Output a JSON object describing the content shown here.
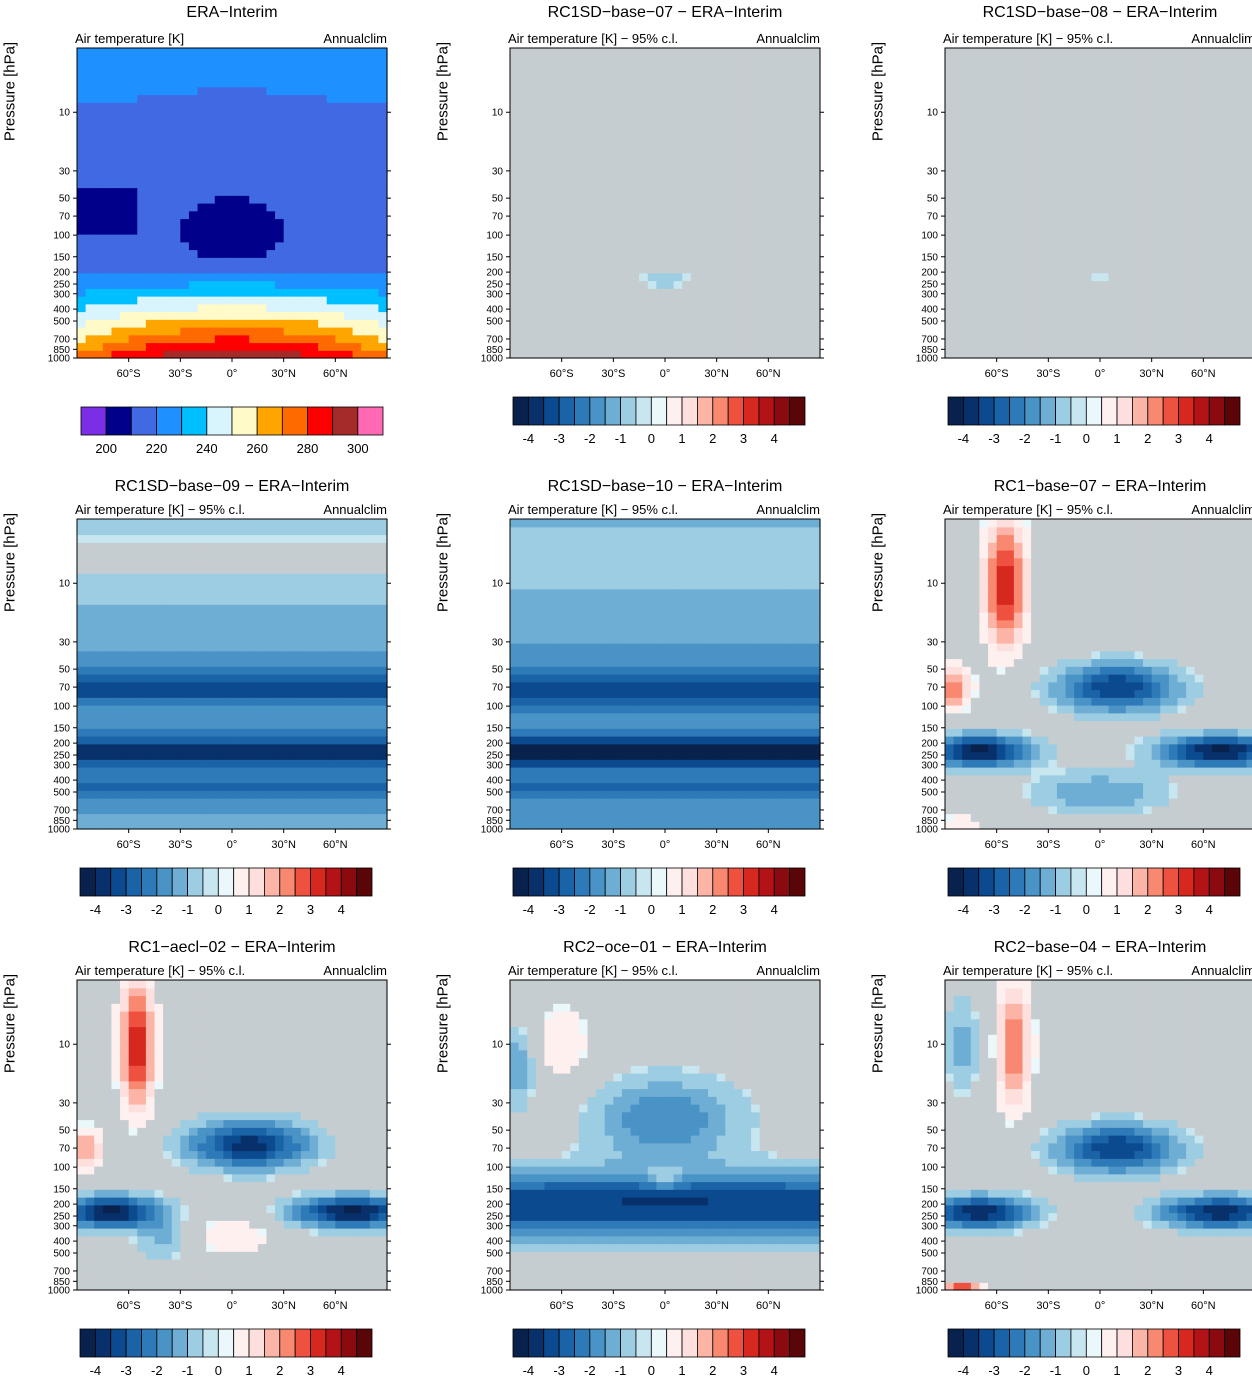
{
  "chart_data": {
    "type": "heatmap",
    "description_grid": "3x3 panels of zonal-mean annual climatology of air temperature",
    "shared": {
      "subtitle_right": "Annualclim",
      "ylabel": "Pressure [hPa]",
      "y_ticks": [
        10,
        30,
        50,
        70,
        100,
        150,
        200,
        250,
        300,
        400,
        500,
        700,
        850,
        1000
      ],
      "x_ticks": [
        "60°S",
        "30°S",
        "0°",
        "30°N",
        "60°N"
      ],
      "x_tick_values": [
        -60,
        -30,
        0,
        30,
        60
      ],
      "x_range": [
        -90,
        90
      ],
      "y_range_hpa": [
        1000,
        3
      ],
      "y_scale": "log"
    },
    "panels": [
      {
        "id": "era-interim",
        "title": "ERA−Interim",
        "subtitle_left": "Air temperature [K]",
        "kind": "absolute",
        "colorbar_labels": [
          "200",
          "220",
          "240",
          "260",
          "280",
          "300"
        ],
        "colorbar_colors": [
          "#7a2ee6",
          "#00008b",
          "#4169e1",
          "#1e90ff",
          "#00bfff",
          "#d8f4fc",
          "#fffac8",
          "#ffa500",
          "#ff6a00",
          "#ff0000",
          "#a52a2a",
          "#ff69b4"
        ],
        "colorbar_levels": [
          195,
          200,
          210,
          220,
          230,
          240,
          250,
          260,
          270,
          280,
          290,
          300,
          310
        ]
      },
      {
        "id": "rc1sd-base-07",
        "title": "RC1SD−base−07 − ERA−Interim",
        "subtitle_left": "Air temperature [K] − 95% c.l.",
        "kind": "difference",
        "pattern": 0
      },
      {
        "id": "rc1sd-base-08",
        "title": "RC1SD−base−08 − ERA−Interim",
        "subtitle_left": "Air temperature [K] − 95% c.l.",
        "kind": "difference",
        "pattern": 1
      },
      {
        "id": "rc1sd-base-09",
        "title": "RC1SD−base−09 − ERA−Interim",
        "subtitle_left": "Air temperature [K] − 95% c.l.",
        "kind": "difference",
        "pattern": 2
      },
      {
        "id": "rc1sd-base-10",
        "title": "RC1SD−base−10 − ERA−Interim",
        "subtitle_left": "Air temperature [K] − 95% c.l.",
        "kind": "difference",
        "pattern": 3
      },
      {
        "id": "rc1-base-07",
        "title": "RC1−base−07 − ERA−Interim",
        "subtitle_left": "Air temperature [K] − 95% c.l.",
        "kind": "difference",
        "pattern": 4
      },
      {
        "id": "rc1-aecl-02",
        "title": "RC1−aecl−02 − ERA−Interim",
        "subtitle_left": "Air temperature [K] − 95% c.l.",
        "kind": "difference",
        "pattern": 5
      },
      {
        "id": "rc2-oce-01",
        "title": "RC2−oce−01 − ERA−Interim",
        "subtitle_left": "Air temperature [K] − 95% c.l.",
        "kind": "difference",
        "pattern": 6
      },
      {
        "id": "rc2-base-04",
        "title": "RC2−base−04 − ERA−Interim",
        "subtitle_left": "Air temperature [K] − 95% c.l.",
        "kind": "difference",
        "pattern": 7
      }
    ],
    "difference_colorbar": {
      "labels": [
        "-4",
        "-3",
        "-2",
        "-1",
        "0",
        "1",
        "2",
        "3",
        "4"
      ],
      "label_values": [
        -4,
        -3,
        -2,
        -1,
        0,
        1,
        2,
        3,
        4
      ],
      "levels": [
        -4.5,
        -4,
        -3.5,
        -3,
        -2.5,
        -2,
        -1.5,
        -1,
        -0.5,
        0,
        0.5,
        1,
        1.5,
        2,
        2.5,
        3,
        3.5,
        4,
        4.5
      ],
      "colors": [
        "#08224d",
        "#08306b",
        "#0b4a8f",
        "#1b63a7",
        "#2e7ab8",
        "#4a93c6",
        "#6eaed4",
        "#9ccde2",
        "#c7e6f0",
        "#eaf7fb",
        "#fff0f0",
        "#fde0dd",
        "#fbb4a6",
        "#f88870",
        "#ef5140",
        "#d7281f",
        "#b31217",
        "#8a0a0f",
        "#5a0508"
      ],
      "insignificant_color": "#c6cdd0"
    }
  }
}
